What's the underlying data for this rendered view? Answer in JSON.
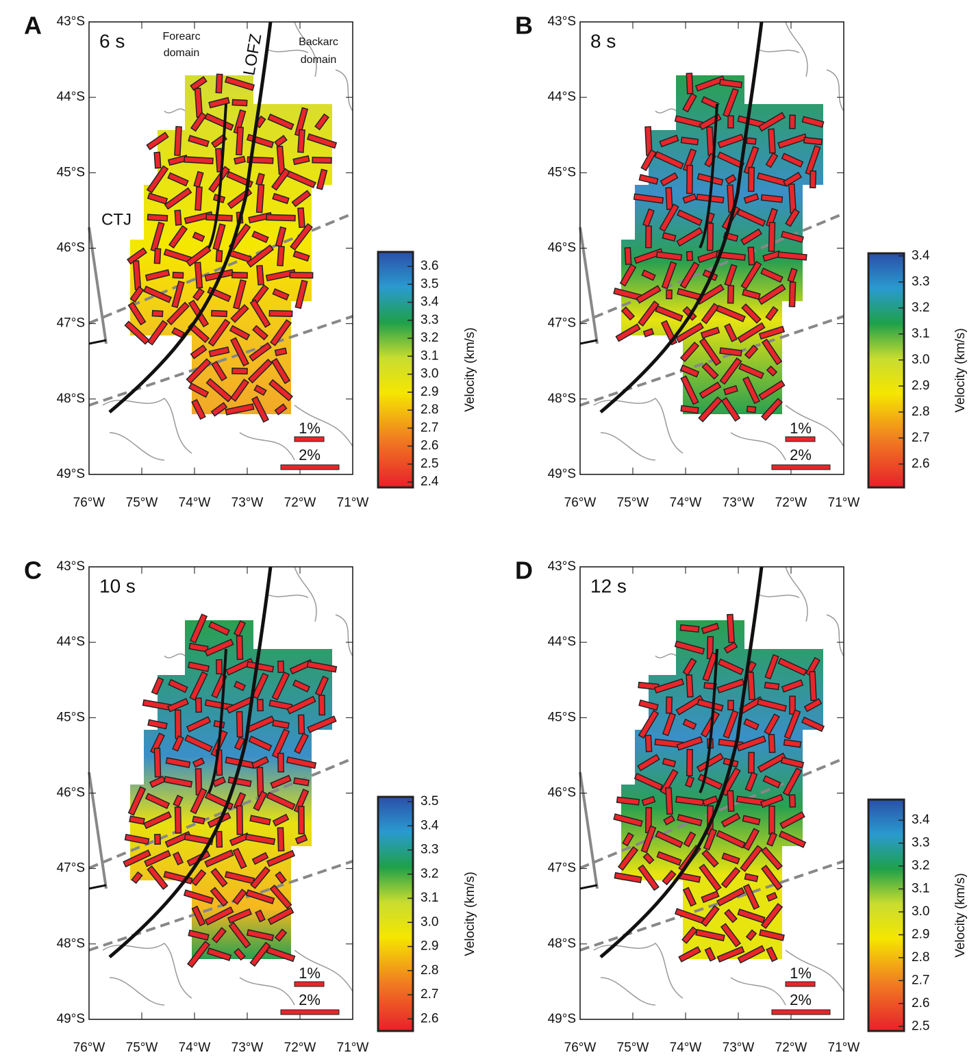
{
  "axes": {
    "lonlim": [
      -76,
      -71
    ],
    "latlim": [
      -43,
      -49
    ],
    "lon_ticks": [
      {
        "value": -76,
        "label": "76°W"
      },
      {
        "value": -75,
        "label": "75°W"
      },
      {
        "value": -74,
        "label": "74°W"
      },
      {
        "value": -73,
        "label": "73°W"
      },
      {
        "value": -72,
        "label": "72°W"
      },
      {
        "value": -71,
        "label": "71°W"
      }
    ],
    "lat_ticks": [
      {
        "value": -43,
        "label": "43°S"
      },
      {
        "value": -44,
        "label": "44°S"
      },
      {
        "value": -45,
        "label": "45°S"
      },
      {
        "value": -46,
        "label": "46°S"
      },
      {
        "value": -47,
        "label": "47°S"
      },
      {
        "value": -48,
        "label": "48°S"
      },
      {
        "value": -49,
        "label": "49°S"
      }
    ]
  },
  "panels": [
    {
      "letter": "A",
      "period": "6 s",
      "scale": [
        "1%",
        "2%"
      ],
      "colorbar": {
        "label": "Velocity (km/s)",
        "lim": [
          2.37,
          3.68
        ],
        "ticks": [
          2.4,
          2.5,
          2.6,
          2.7,
          2.8,
          2.9,
          {
            "value": 3,
            "label": "3.0"
          },
          3.1,
          3.2,
          3.3,
          3.4,
          3.5,
          3.6
        ]
      },
      "annotations": {
        "forearc": [
          "Forearc",
          "domain"
        ],
        "backarc": [
          "Backarc",
          "domain"
        ],
        "fault": "LOFZ",
        "junction": "CTJ"
      }
    },
    {
      "letter": "B",
      "period": "8 s",
      "scale": [
        "1%",
        "2%"
      ],
      "colorbar": {
        "label": "Velocity (km/s)",
        "lim": [
          2.51,
          3.41
        ],
        "ticks": [
          2.6,
          2.7,
          2.8,
          2.9,
          {
            "value": 3,
            "label": "3.0"
          },
          3.1,
          3.2,
          3.3,
          3.4
        ]
      }
    },
    {
      "letter": "C",
      "period": "10 s",
      "scale": [
        "1%",
        "2%"
      ],
      "colorbar": {
        "label": "Velocity (km/s)",
        "lim": [
          2.55,
          3.52
        ],
        "ticks": [
          2.6,
          2.7,
          2.8,
          2.9,
          {
            "value": 3,
            "label": "3.0"
          },
          3.1,
          3.2,
          3.3,
          3.4,
          3.5
        ]
      }
    },
    {
      "letter": "D",
      "period": "12 s",
      "scale": [
        "1%",
        "2%"
      ],
      "colorbar": {
        "label": "Velocity (km/s)",
        "lim": [
          2.48,
          3.49
        ],
        "ticks": [
          2.5,
          2.6,
          2.7,
          2.8,
          2.9,
          {
            "value": 3,
            "label": "3.0"
          },
          3.1,
          3.2,
          3.3,
          3.4
        ]
      }
    }
  ]
}
